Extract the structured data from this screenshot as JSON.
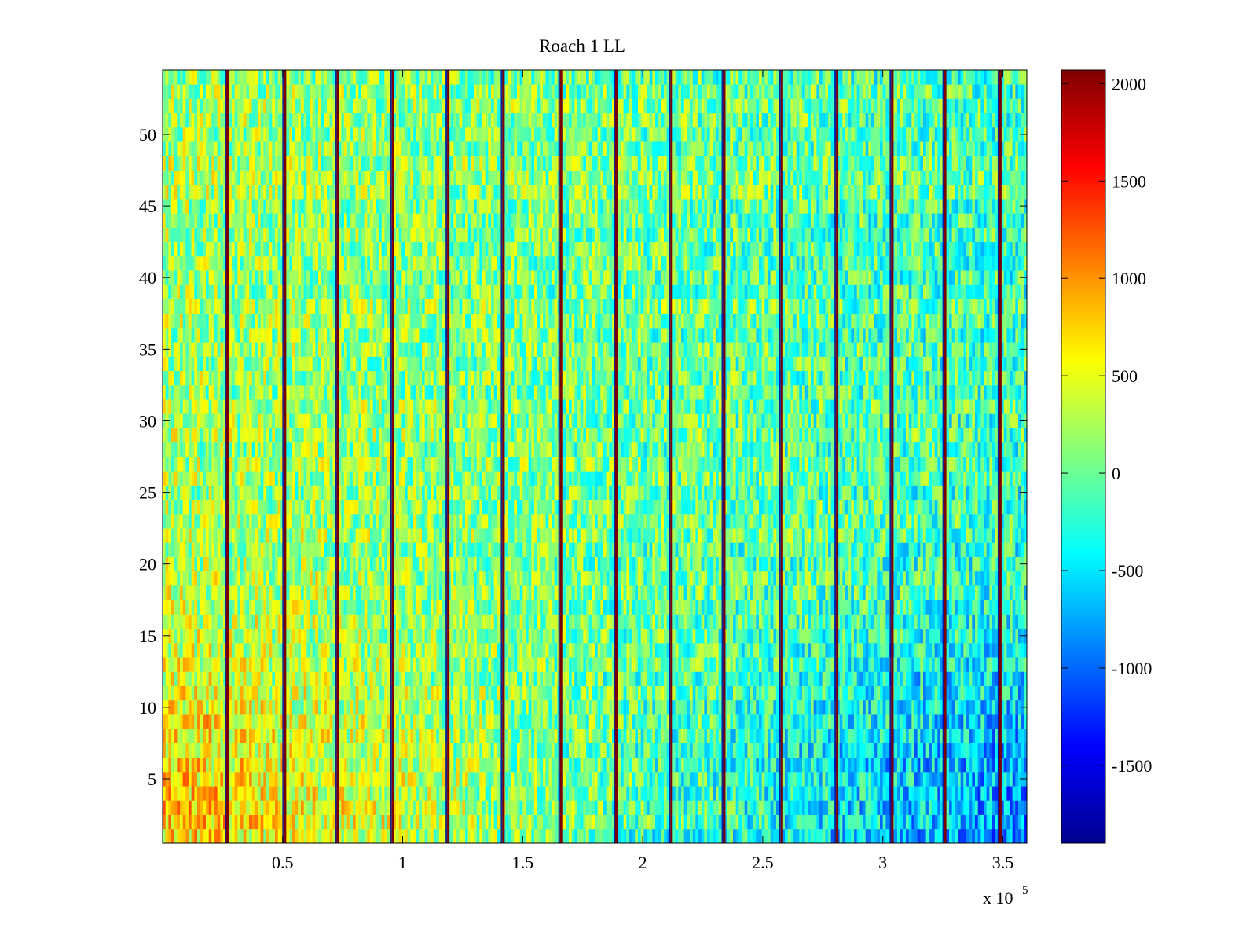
{
  "chart_data": {
    "type": "heatmap",
    "title": "Roach 1 LL",
    "xlabel": "",
    "ylabel": "",
    "x_exponent_label": {
      "base": "x 10",
      "exponent": "5"
    },
    "x_scale_factor": 100000,
    "xlim": [
      0.0,
      3.6
    ],
    "ylim": [
      0.5,
      54.5
    ],
    "x_ticks": [
      0.5,
      1,
      1.5,
      2,
      2.5,
      3,
      3.5
    ],
    "x_tick_labels": [
      "0.5",
      "1",
      "1.5",
      "2",
      "2.5",
      "3",
      "3.5"
    ],
    "y_ticks": [
      5,
      10,
      15,
      20,
      25,
      30,
      35,
      40,
      45,
      50
    ],
    "y_tick_labels": [
      "5",
      "10",
      "15",
      "20",
      "25",
      "30",
      "35",
      "40",
      "45",
      "50"
    ],
    "rows": 54,
    "colormap": "jet",
    "clim": [
      -1900,
      2070
    ],
    "colorbar": {
      "ticks": [
        -1500,
        -1000,
        -500,
        0,
        500,
        1000,
        1500,
        2000
      ],
      "tick_labels": [
        "-1500",
        "-1000",
        "-500",
        "0",
        "500",
        "1000",
        "1500",
        "2000"
      ]
    },
    "spike_columns_x": [
      0.27,
      0.51,
      0.73,
      0.96,
      1.19,
      1.42,
      1.66,
      1.89,
      2.12,
      2.34,
      2.58,
      2.81,
      3.04,
      3.26,
      3.49
    ],
    "spike_value": 2000,
    "spike_trough_value": -1800,
    "regional_means": {
      "left_low_rows": 800,
      "left_high_rows": 250,
      "right_low_rows": -850,
      "right_high_rows": -150
    }
  }
}
